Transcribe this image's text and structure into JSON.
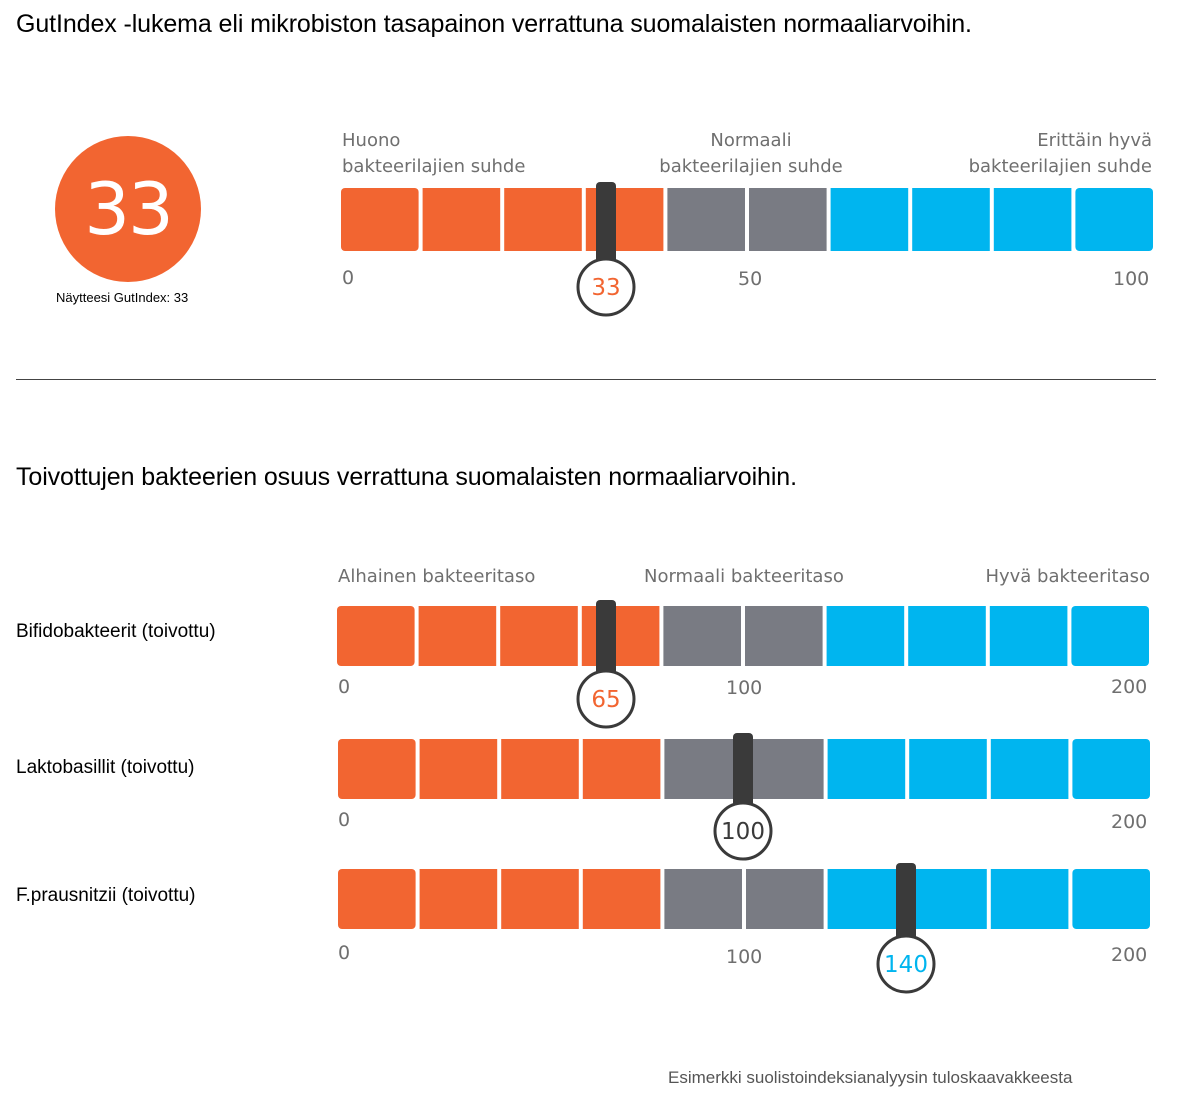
{
  "colors": {
    "low": "#f26531",
    "normal": "#797b83",
    "high": "#00b5ef",
    "pointer": "#3a3a3a",
    "text_gray": "#6f6f6f"
  },
  "section1": {
    "title": "GutIndex -lukema eli mikrobiston tasapainon verrattuna suomalaisten normaaliarvoihin.",
    "score": "33",
    "score_caption": "Näytteesi GutIndex: 33",
    "zone_labels": {
      "low": [
        "Huono",
        "bakteerilajien suhde"
      ],
      "normal": [
        "Normaali",
        "bakteerilajien suhde"
      ],
      "high": [
        "Erittäin hyvä",
        "bakteerilajien suhde"
      ]
    },
    "ticks": {
      "min": "0",
      "mid": "50",
      "max": "100"
    }
  },
  "section2": {
    "title": "Toivottujen bakteerien osuus verrattuna suomalaisten normaaliarvoihin.",
    "zone_labels": {
      "low": "Alhainen bakteeritaso",
      "normal": "Normaali bakteeritaso",
      "high": "Hyvä bakteeritaso"
    },
    "rows": [
      {
        "label": "Bifidobakteerit (toivottu)",
        "min": "0",
        "mid": "100",
        "max": "200"
      },
      {
        "label": "Laktobasillit (toivottu)",
        "min": "0",
        "max": "200"
      },
      {
        "label": "F.prausnitzii (toivottu)",
        "min": "0",
        "mid": "100",
        "max": "200"
      }
    ]
  },
  "chart_data": [
    {
      "type": "bar",
      "title": "GutIndex -lukema eli mikrobiston tasapainon verrattuna suomalaisten normaaliarvoihin.",
      "xlim": [
        0,
        100
      ],
      "zones": [
        "Huono bakteerilajien suhde",
        "Normaali bakteerilajien suhde",
        "Erittäin hyvä bakteerilajien suhde"
      ],
      "value": 33,
      "marker_label": "33",
      "marker_zone": "low"
    },
    {
      "type": "bar",
      "category": "Bifidobakteerit (toivottu)",
      "xlim": [
        0,
        200
      ],
      "zones": [
        "Alhainen bakteeritaso",
        "Normaali bakteeritaso",
        "Hyvä bakteeritaso"
      ],
      "value": 65,
      "marker_label": "65",
      "marker_zone": "low"
    },
    {
      "type": "bar",
      "category": "Laktobasillit (toivottu)",
      "xlim": [
        0,
        200
      ],
      "zones": [
        "Alhainen bakteeritaso",
        "Normaali bakteeritaso",
        "Hyvä bakteeritaso"
      ],
      "value": 100,
      "marker_label": "100",
      "marker_zone": "normal"
    },
    {
      "type": "bar",
      "category": "F.prausnitzii (toivottu)",
      "xlim": [
        0,
        200
      ],
      "zones": [
        "Alhainen bakteeritaso",
        "Normaali bakteeritaso",
        "Hyvä bakteeritaso"
      ],
      "value": 140,
      "marker_label": "140",
      "marker_zone": "high"
    }
  ],
  "footer": "Esimerkki suolistoindeksianalyysin tuloskaavakkeesta"
}
